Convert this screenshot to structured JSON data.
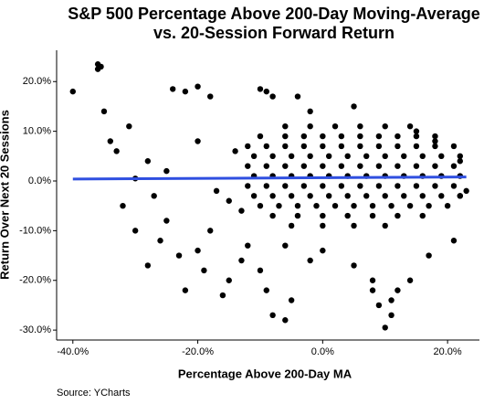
{
  "chart_data": {
    "type": "scatter",
    "title": "S&P 500 Percentage Above 200-Day Moving-Average",
    "subtitle": "vs. 20-Session Forward Return",
    "x_label": "Percentage Above 200-Day MA",
    "y_label": "Return Over Next 20 Sessions",
    "source": "Source:  YCharts",
    "color": "#000000",
    "x": [
      -40,
      -36,
      -35.5,
      -36,
      -35,
      -34,
      -33,
      -30,
      -32,
      -30,
      -28,
      -26,
      -25,
      -24,
      -22,
      -20,
      -18,
      -22,
      -20,
      -18,
      -16,
      -15,
      -13,
      -12,
      -10,
      -9,
      -8,
      -6,
      -5,
      -10,
      -9,
      -8,
      -4,
      -6,
      -2,
      0,
      5,
      8,
      8,
      9,
      10,
      11,
      11,
      12,
      14,
      17,
      21,
      22,
      23,
      22,
      18,
      15,
      5,
      -2,
      -15,
      -28,
      -25,
      -20,
      -17,
      -14,
      -13,
      -27,
      -31,
      -23,
      -19,
      -6,
      -2,
      2,
      6,
      10,
      14,
      -10,
      -6,
      -3,
      0,
      3,
      6,
      9,
      12,
      15,
      18,
      -12,
      -9,
      -6,
      -3,
      0,
      3,
      6,
      9,
      12,
      15,
      18,
      21,
      -11,
      -8,
      -5,
      -2,
      1,
      4,
      7,
      10,
      13,
      16,
      19,
      22,
      -12,
      -9,
      -6,
      -3,
      0,
      3,
      6,
      9,
      12,
      15,
      18,
      21,
      -11,
      -8,
      -5,
      -2,
      1,
      4,
      7,
      10,
      13,
      16,
      19,
      22,
      -12,
      -9,
      -6,
      -3,
      0,
      3,
      6,
      9,
      12,
      15,
      18,
      21,
      -11,
      -8,
      -5,
      -2,
      1,
      4,
      7,
      10,
      13,
      16,
      19,
      22,
      -10,
      -7,
      -4,
      -1,
      2,
      5,
      8,
      11,
      14,
      17,
      20,
      -8,
      -4,
      0,
      4,
      8,
      12,
      16,
      -5,
      0,
      5,
      10
    ],
    "values": [
      18,
      23.5,
      23,
      22.5,
      14,
      8,
      6,
      0.5,
      -5,
      -10,
      -17,
      -12,
      -8,
      18.5,
      18,
      19,
      17,
      -22,
      -14,
      -10,
      -23,
      -20,
      -16,
      -13,
      -18,
      -22,
      -27,
      -28,
      -24,
      18.5,
      18,
      17,
      17,
      -13,
      -16,
      -14,
      -17,
      -20,
      -22,
      -25,
      -29.5,
      -27,
      -24,
      -22,
      -20,
      -15,
      -12,
      -3,
      -2,
      4,
      8,
      10,
      15,
      14,
      -4,
      4,
      2,
      8,
      -2,
      6,
      -6,
      -3,
      11,
      -15,
      -18,
      11,
      11,
      11,
      11,
      11,
      11,
      9,
      9,
      9,
      9,
      9,
      9,
      9,
      9,
      9,
      9,
      7,
      7,
      7,
      7,
      7,
      7,
      7,
      7,
      7,
      7,
      7,
      7,
      5,
      5,
      5,
      5,
      5,
      5,
      5,
      5,
      5,
      5,
      5,
      5,
      3,
      3,
      3,
      3,
      3,
      3,
      3,
      3,
      3,
      3,
      3,
      3,
      1,
      1,
      1,
      1,
      1,
      1,
      1,
      1,
      1,
      1,
      1,
      1,
      -1,
      -1,
      -1,
      -1,
      -1,
      -1,
      -1,
      -1,
      -1,
      -1,
      -1,
      -1,
      -3,
      -3,
      -3,
      -3,
      -3,
      -3,
      -3,
      -3,
      -3,
      -3,
      -3,
      -3,
      -5,
      -5,
      -5,
      -5,
      -5,
      -5,
      -5,
      -5,
      -5,
      -5,
      -5,
      -7,
      -7,
      -7,
      -7,
      -7,
      -7,
      -7,
      -9,
      -9,
      -9,
      -9
    ],
    "trend": {
      "x": [
        -40,
        23
      ],
      "values": [
        0.4,
        0.8
      ],
      "color": "#2f4fe0"
    },
    "xlim": [
      -42.6,
      25.1
    ],
    "ylim": [
      -32,
      26.3
    ],
    "xticks": [
      {
        "value": -40,
        "label": "-40.0%"
      },
      {
        "value": -20,
        "label": "-20.0%"
      },
      {
        "value": 0,
        "label": "0.0%"
      },
      {
        "value": 20,
        "label": "20.0%"
      }
    ],
    "yticks": [
      {
        "value": -30,
        "label": "-30.0%"
      },
      {
        "value": -20,
        "label": "-20.0%"
      },
      {
        "value": -10,
        "label": "-10.0%"
      },
      {
        "value": 0,
        "label": "0.0%"
      },
      {
        "value": 10,
        "label": "10.0%"
      },
      {
        "value": 20,
        "label": "20.0%"
      }
    ],
    "grid": false
  }
}
